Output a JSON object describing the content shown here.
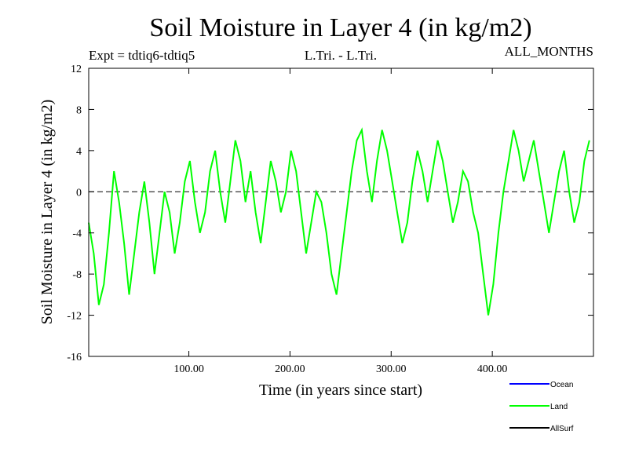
{
  "header": {
    "title": "Soil Moisture in Layer 4 (in kg/m2)",
    "expt": "Expt = tdtiq6-tdtiq5",
    "grid_label": "L.Tri. - L.Tri.",
    "months": "ALL_MONTHS"
  },
  "legend": {
    "items": [
      {
        "label": "Ocean",
        "color": "#0000ff"
      },
      {
        "label": "Land",
        "color": "#00ff00"
      },
      {
        "label": "AllSurf",
        "color": "#000000"
      }
    ]
  },
  "chart_data": {
    "type": "line",
    "title": "Soil Moisture in Layer 4 (in kg/m2)",
    "xlabel": "Time (in years since start)",
    "ylabel": "Soil Moisture in Layer 4 (in kg/m2)",
    "xlim": [
      1,
      500
    ],
    "ylim": [
      -16,
      12
    ],
    "x_ticks": [
      100,
      200,
      300,
      400
    ],
    "x_tick_labels": [
      "100.00",
      "200.00",
      "300.00",
      "400.00"
    ],
    "y_ticks": [
      -16,
      -12,
      -8,
      -4,
      0,
      4,
      8,
      12
    ],
    "y_tick_labels": [
      "-16",
      "-12",
      "-8",
      "-4",
      "0",
      "4",
      "8",
      "12"
    ],
    "zero_line": 0,
    "series": [
      {
        "name": "Land",
        "color": "#00ff00",
        "x_start": 1,
        "x_step": 5,
        "values": [
          -3,
          -6,
          -11,
          -9,
          -4,
          2,
          -1,
          -5,
          -10,
          -6,
          -2,
          1,
          -3,
          -8,
          -4,
          0,
          -2,
          -6,
          -3,
          1,
          3,
          -1,
          -4,
          -2,
          2,
          4,
          0,
          -3,
          1,
          5,
          3,
          -1,
          2,
          -2,
          -5,
          -1,
          3,
          1,
          -2,
          0,
          4,
          2,
          -2,
          -6,
          -3,
          0,
          -1,
          -4,
          -8,
          -10,
          -6,
          -2,
          2,
          5,
          6,
          2,
          -1,
          3,
          6,
          4,
          1,
          -2,
          -5,
          -3,
          1,
          4,
          2,
          -1,
          2,
          5,
          3,
          0,
          -3,
          -1,
          2,
          1,
          -2,
          -4,
          -8,
          -12,
          -9,
          -4,
          0,
          3,
          6,
          4,
          1,
          3,
          5,
          2,
          -1,
          -4,
          -1,
          2,
          4,
          0,
          -3,
          -1,
          3,
          5
        ]
      }
    ]
  }
}
